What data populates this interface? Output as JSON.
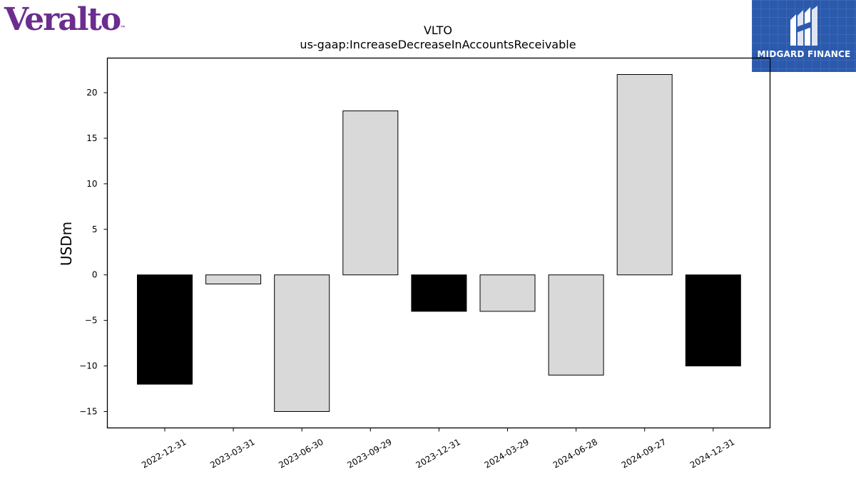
{
  "branding": {
    "company_logo_text": "Veralto",
    "company_logo_color": "#6b2d8e",
    "publisher_name": "MIDGARD FINANCE",
    "publisher_bg_color": "#2b5aad",
    "publisher_icon": "midgard-m-icon"
  },
  "chart_data": {
    "type": "bar",
    "title": "VLTO",
    "subtitle": "us-gaap:IncreaseDecreaseInAccountsReceivable",
    "xlabel": "",
    "ylabel": "USDm",
    "categories": [
      "2022-12-31",
      "2023-03-31",
      "2023-06-30",
      "2023-09-29",
      "2023-12-31",
      "2024-03-29",
      "2024-06-28",
      "2024-09-27",
      "2024-12-31"
    ],
    "values": [
      -12,
      -1,
      -15,
      18,
      -4,
      -4,
      -11,
      22,
      -10
    ],
    "bar_colors": [
      "#000000",
      "#d9d9d9",
      "#d9d9d9",
      "#d9d9d9",
      "#000000",
      "#d9d9d9",
      "#d9d9d9",
      "#d9d9d9",
      "#000000"
    ],
    "bar_edge_color": "#000000",
    "yticks": [
      20,
      15,
      10,
      5,
      0,
      -5,
      -10,
      -15
    ],
    "ytick_labels": [
      "20",
      "15",
      "10",
      "5",
      "0",
      "−5",
      "−10",
      "−15"
    ],
    "ylim": [
      -16.8,
      23.8
    ],
    "grid": false,
    "legend": "none"
  }
}
